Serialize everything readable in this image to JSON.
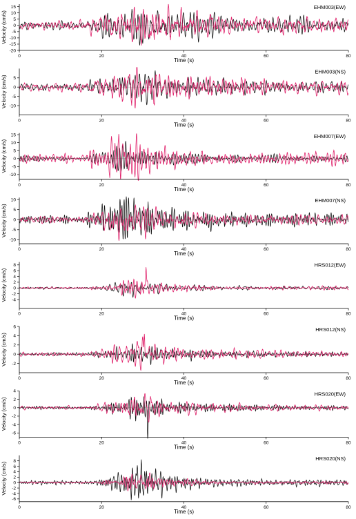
{
  "chart_data": {
    "type": "line",
    "grid": false,
    "series_colors": {
      "black": "#111111",
      "pink": "#e0206a"
    },
    "panels": [
      {
        "id": "EHM003-EW",
        "station": "EHM003(EW)",
        "xlabel": "Time (s)",
        "ylabel": "Velocity (cm/s)",
        "xlim": [
          0,
          80
        ],
        "ylim": [
          -20,
          17
        ],
        "xticks": [
          0,
          20,
          40,
          60,
          80
        ],
        "yticks": [
          -20,
          -15,
          -10,
          -5,
          0,
          5,
          10,
          15
        ],
        "envelope": {
          "onset_s": 18.5,
          "peak_s": 29.0,
          "decay_s": 14.0,
          "pre_noise": 0.35
        },
        "series": [
          {
            "color": "black",
            "peak": 16.0,
            "freq": 1.15,
            "seed": 11,
            "noise": 0.45
          },
          {
            "color": "pink",
            "peak": 17.0,
            "freq": 0.75,
            "seed": 29,
            "noise": 0.55
          }
        ]
      },
      {
        "id": "EHM003-NS",
        "station": "EHM003(NS)",
        "xlabel": "Time (s)",
        "ylabel": "Velocity (cm/s)",
        "xlim": [
          0,
          80
        ],
        "ylim": [
          -15,
          10
        ],
        "xticks": [
          0,
          20,
          40,
          60,
          80
        ],
        "yticks": [
          -10,
          -5,
          0,
          5
        ],
        "envelope": {
          "onset_s": 19.0,
          "peak_s": 28.0,
          "decay_s": 13.0,
          "pre_noise": 0.35
        },
        "series": [
          {
            "color": "black",
            "peak": 9.5,
            "freq": 1.1,
            "seed": 37,
            "noise": 0.45
          },
          {
            "color": "pink",
            "peak": 13.5,
            "freq": 0.72,
            "seed": 53,
            "noise": 0.55
          }
        ]
      },
      {
        "id": "EHM007-EW",
        "station": "EHM007(EW)",
        "xlabel": "Time (s)",
        "ylabel": "Velocity (cm/s)",
        "xlim": [
          0,
          80
        ],
        "ylim": [
          -13,
          16
        ],
        "xticks": [
          0,
          20,
          40,
          60,
          80
        ],
        "yticks": [
          -10,
          -5,
          0,
          5,
          10,
          15
        ],
        "envelope": {
          "onset_s": 18.5,
          "peak_s": 25.5,
          "decay_s": 8.5,
          "pre_noise": 0.25
        },
        "series": [
          {
            "color": "black",
            "peak": 11.0,
            "freq": 1.2,
            "seed": 61,
            "noise": 0.35
          },
          {
            "color": "pink",
            "peak": 15.5,
            "freq": 0.95,
            "seed": 71,
            "noise": 0.45
          }
        ]
      },
      {
        "id": "EHM007-NS",
        "station": "EHM007(NS)",
        "xlabel": "Time (s)",
        "ylabel": "Velocity (cm/s)",
        "xlim": [
          0,
          80
        ],
        "ylim": [
          -12,
          11
        ],
        "xticks": [
          0,
          20,
          40,
          60,
          80
        ],
        "yticks": [
          -10,
          -5,
          0,
          5,
          10
        ],
        "envelope": {
          "onset_s": 18.5,
          "peak_s": 24.5,
          "decay_s": 9.5,
          "pre_noise": 0.25
        },
        "series": [
          {
            "color": "black",
            "peak": 11.5,
            "freq": 1.2,
            "seed": 83,
            "noise": 0.35
          },
          {
            "color": "pink",
            "peak": 10.5,
            "freq": 0.8,
            "seed": 97,
            "noise": 0.45
          }
        ]
      },
      {
        "id": "HRS012-EW",
        "station": "HRS012(EW)",
        "xlabel": "Time (s)",
        "ylabel": "Velocity (cm/s)",
        "xlim": [
          0,
          80
        ],
        "ylim": [
          -7,
          9
        ],
        "xticks": [
          0,
          20,
          40,
          60,
          80
        ],
        "yticks": [
          -4,
          -2,
          0,
          2,
          4,
          6,
          8
        ],
        "envelope": {
          "onset_s": 19.5,
          "peak_s": 27.0,
          "decay_s": 9.0,
          "pre_noise": 0.2
        },
        "series": [
          {
            "color": "black",
            "peak": 3.2,
            "freq": 1.3,
            "seed": 101,
            "noise": 0.25
          },
          {
            "color": "pink",
            "peak": 3.6,
            "freq": 1.05,
            "seed": 113,
            "noise": 0.3,
            "spike": {
              "t": 30.8,
              "amp": 8.6
            }
          }
        ]
      },
      {
        "id": "HRS012-NS",
        "station": "HRS012(NS)",
        "xlabel": "Time (s)",
        "ylabel": "Velocity (cm/s)",
        "xlim": [
          0,
          80
        ],
        "ylim": [
          -4,
          6
        ],
        "xticks": [
          0,
          20,
          40,
          60,
          80
        ],
        "yticks": [
          -2,
          0,
          2,
          4,
          6
        ],
        "envelope": {
          "onset_s": 19.5,
          "peak_s": 28.0,
          "decay_s": 11.0,
          "pre_noise": 0.25
        },
        "series": [
          {
            "color": "black",
            "peak": 2.3,
            "freq": 1.3,
            "seed": 127,
            "noise": 0.3
          },
          {
            "color": "pink",
            "peak": 3.8,
            "freq": 0.95,
            "seed": 139,
            "noise": 0.35,
            "spike": {
              "t": 30.4,
              "amp": 6.0
            }
          }
        ]
      },
      {
        "id": "HRS020-EW",
        "station": "HRS020(EW)",
        "xlabel": "Time (s)",
        "ylabel": "Velocity (cm/s)",
        "xlim": [
          0,
          80
        ],
        "ylim": [
          -7,
          4
        ],
        "xticks": [
          0,
          20,
          40,
          60,
          80
        ],
        "yticks": [
          -6,
          -4,
          -2,
          0,
          2,
          4
        ],
        "envelope": {
          "onset_s": 19.5,
          "peak_s": 28.5,
          "decay_s": 10.0,
          "pre_noise": 0.2
        },
        "series": [
          {
            "color": "black",
            "peak": 3.2,
            "freq": 1.25,
            "seed": 149,
            "noise": 0.25,
            "spike": {
              "t": 31.2,
              "amp": -6.6
            }
          },
          {
            "color": "pink",
            "peak": 3.5,
            "freq": 0.9,
            "seed": 157,
            "noise": 0.3
          }
        ]
      },
      {
        "id": "HRS020-NS",
        "station": "HRS020(NS)",
        "xlabel": "Time (s)",
        "ylabel": "Velocity (cm/s)",
        "xlim": [
          0,
          80
        ],
        "ylim": [
          -7,
          10
        ],
        "xticks": [
          0,
          20,
          40,
          60,
          80
        ],
        "yticks": [
          -6,
          -4,
          -2,
          0,
          2,
          4,
          6,
          8
        ],
        "envelope": {
          "onset_s": 20.5,
          "peak_s": 29.5,
          "decay_s": 7.0,
          "pre_noise": 0.15
        },
        "series": [
          {
            "color": "black",
            "peak": 8.5,
            "freq": 1.3,
            "seed": 163,
            "noise": 0.2
          },
          {
            "color": "pink",
            "peak": 3.6,
            "freq": 1.0,
            "seed": 173,
            "noise": 0.25
          }
        ]
      }
    ]
  }
}
